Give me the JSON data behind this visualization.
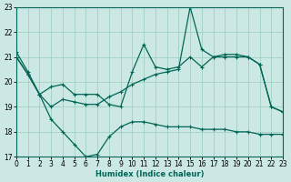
{
  "xlabel": "Humidex (Indice chaleur)",
  "background_color": "#cce8e4",
  "grid_color": "#99ccbb",
  "line_color": "#006655",
  "ylim": [
    17,
    23
  ],
  "xlim": [
    0,
    23
  ],
  "yticks": [
    17,
    18,
    19,
    20,
    21,
    22,
    23
  ],
  "xticks": [
    0,
    1,
    2,
    3,
    4,
    5,
    6,
    7,
    8,
    9,
    10,
    11,
    12,
    13,
    14,
    15,
    16,
    17,
    18,
    19,
    20,
    21,
    22,
    23
  ],
  "line1_x": [
    0,
    1,
    2,
    3,
    4,
    5,
    6,
    7,
    8,
    9,
    10,
    11,
    12,
    13,
    14,
    15,
    16,
    17,
    18,
    19,
    20,
    21,
    22,
    23
  ],
  "line1_y": [
    21.2,
    20.4,
    19.5,
    19.8,
    19.9,
    19.5,
    19.5,
    19.5,
    19.1,
    19.0,
    20.4,
    21.5,
    20.6,
    20.5,
    20.6,
    21.0,
    20.6,
    21.0,
    21.0,
    21.0,
    21.0,
    20.7,
    19.0,
    18.8
  ],
  "line2_x": [
    0,
    1,
    2,
    3,
    4,
    5,
    6,
    7,
    8,
    9,
    10,
    11,
    12,
    13,
    14,
    15,
    16,
    17,
    18,
    19,
    20,
    21,
    22,
    23
  ],
  "line2_y": [
    21.0,
    20.3,
    19.5,
    19.0,
    19.3,
    19.2,
    19.1,
    19.1,
    19.4,
    19.6,
    19.9,
    20.1,
    20.3,
    20.4,
    20.5,
    23.0,
    21.3,
    21.0,
    21.1,
    21.1,
    21.0,
    20.7,
    19.0,
    18.8
  ],
  "line3_x": [
    0,
    1,
    2,
    3,
    4,
    5,
    6,
    7,
    8,
    9,
    10,
    11,
    12,
    13,
    14,
    15,
    16,
    17,
    18,
    19,
    20,
    21,
    22,
    23
  ],
  "line3_y": [
    21.0,
    20.3,
    19.5,
    18.5,
    18.0,
    17.5,
    17.0,
    17.1,
    17.8,
    18.2,
    18.4,
    18.4,
    18.3,
    18.2,
    18.2,
    18.2,
    18.1,
    18.1,
    18.1,
    18.0,
    18.0,
    17.9,
    17.9,
    17.9
  ]
}
